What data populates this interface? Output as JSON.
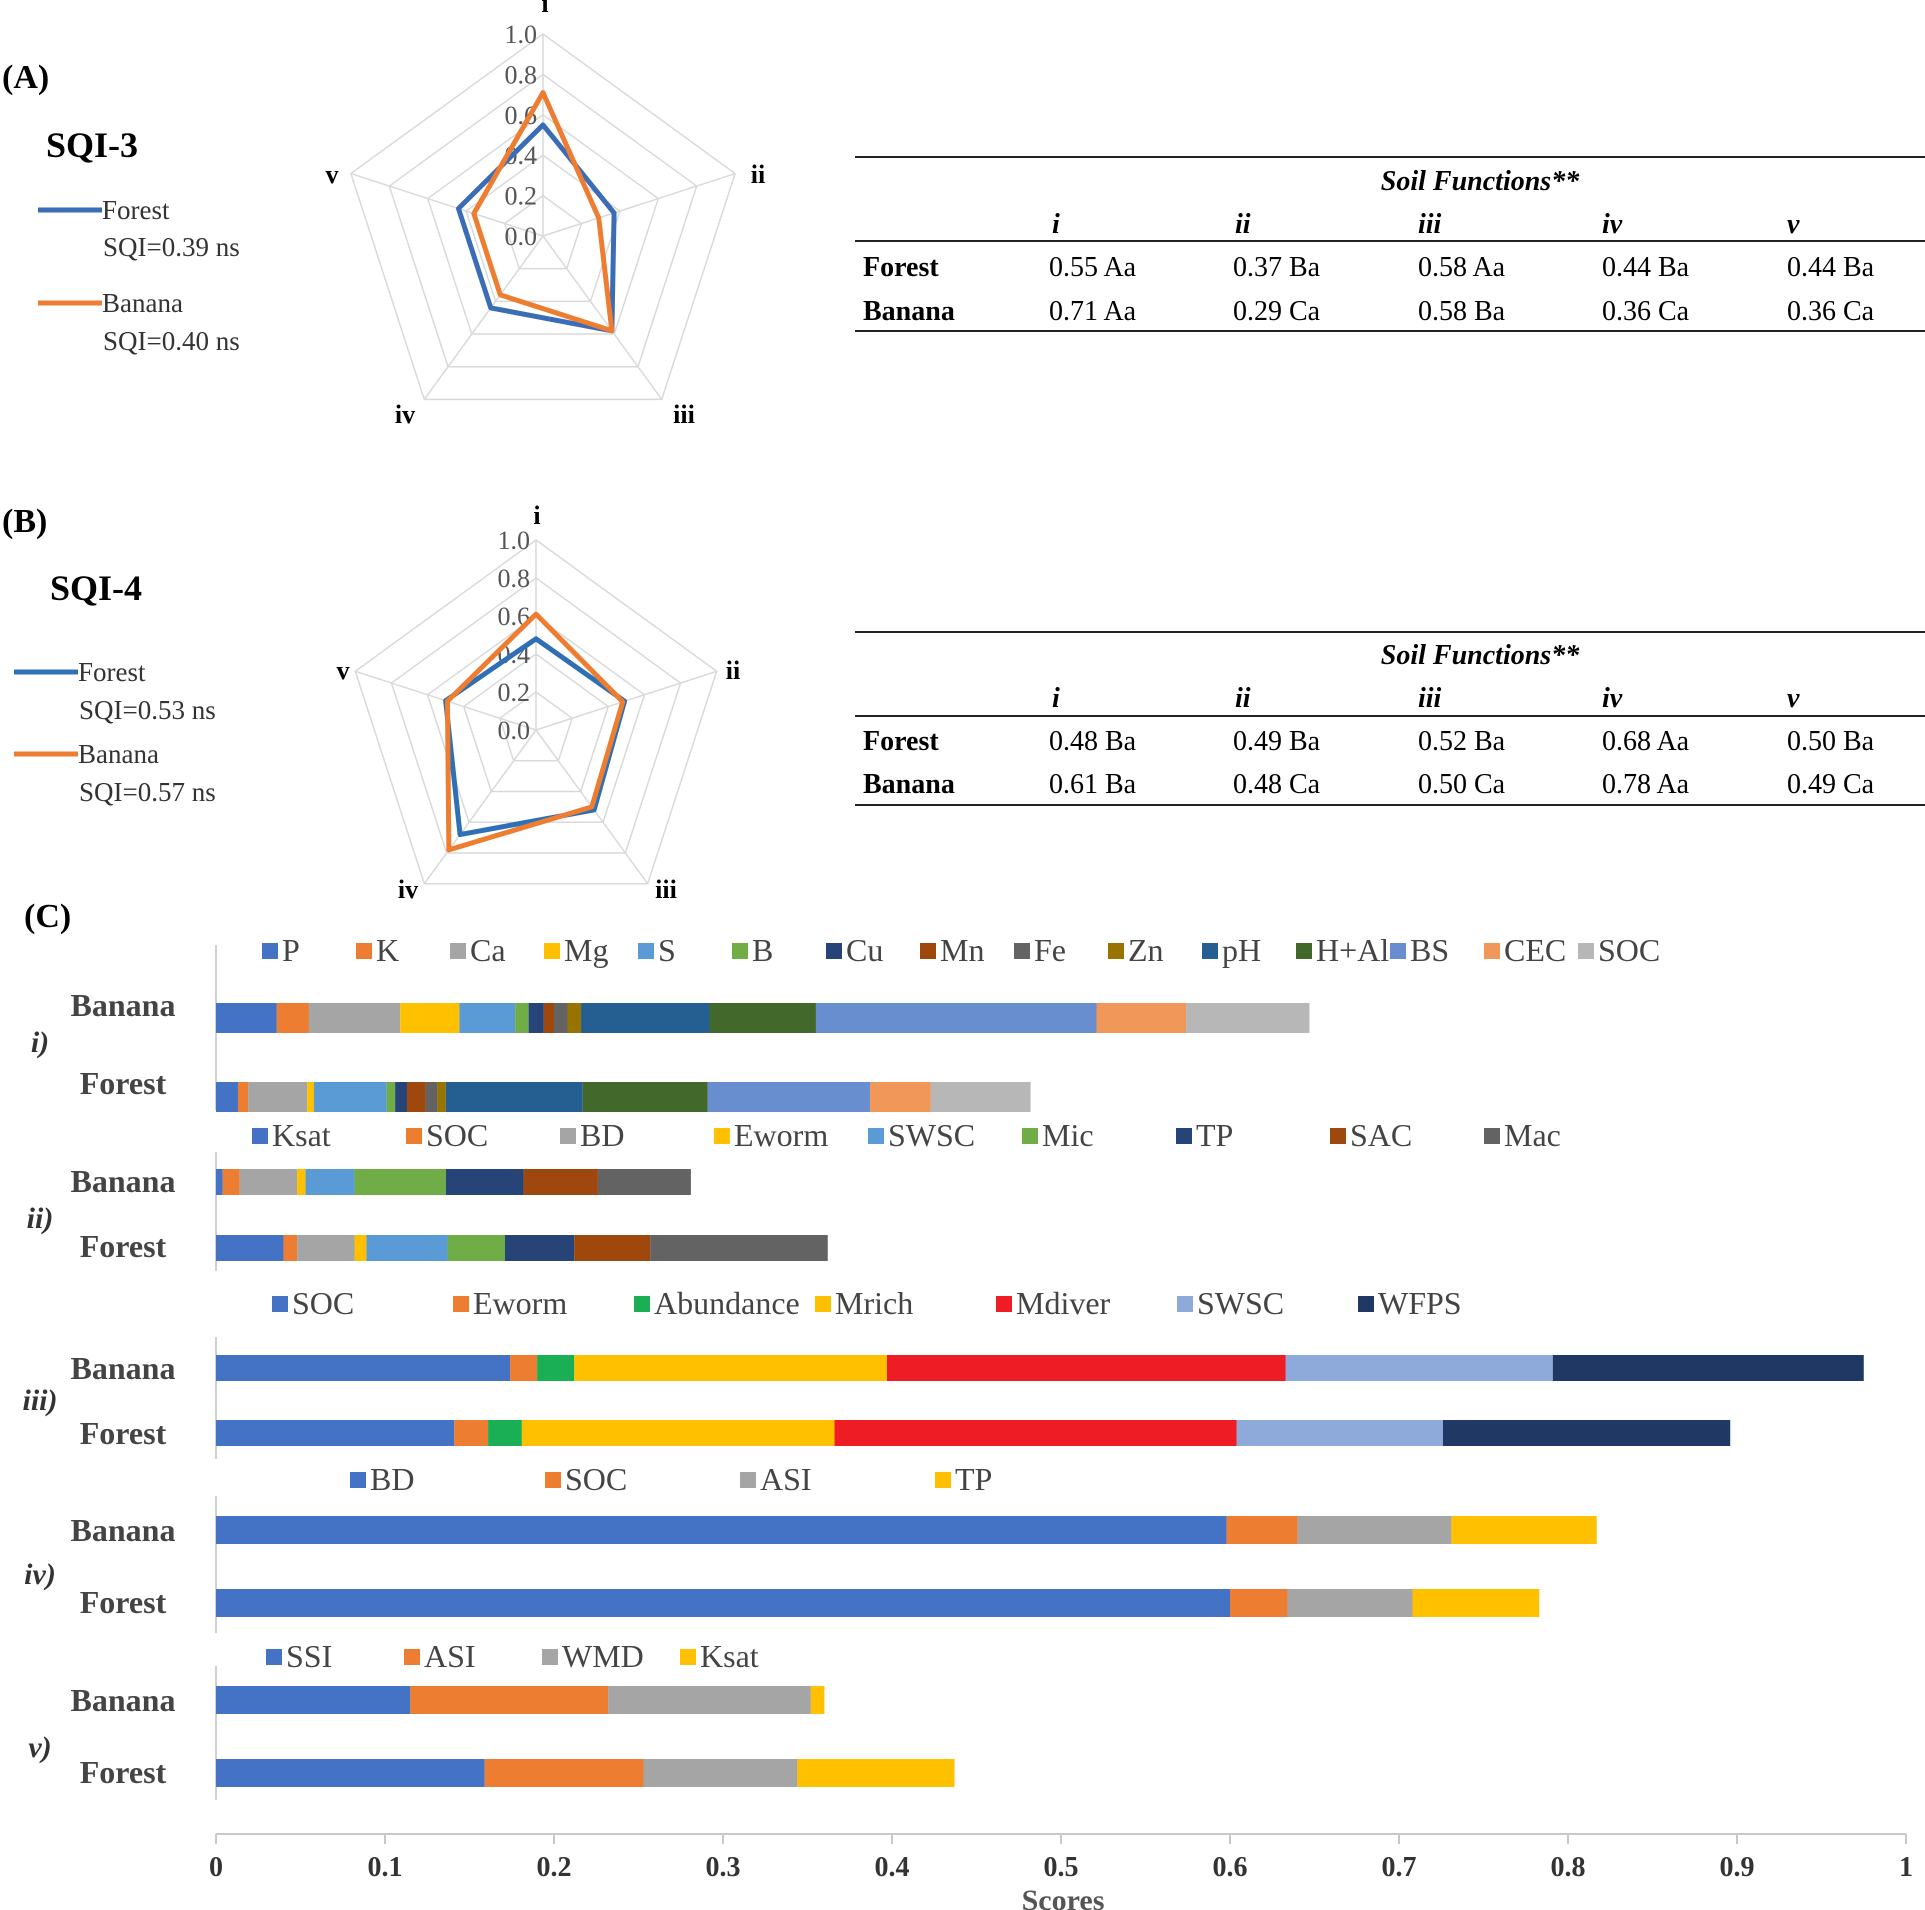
{
  "chart_data": [
    {
      "type": "radar",
      "panel": "(A)",
      "title": "SQI-3",
      "axes": [
        "i",
        "ii",
        "iii",
        "iv",
        "v"
      ],
      "ticks": [
        "1.0",
        "0.8",
        "0.6",
        "0.4",
        "0.2",
        "0.0"
      ],
      "rlim": [
        0,
        1
      ],
      "series": [
        {
          "name": "Forest",
          "sqi": "SQI=0.39 ns",
          "color": "#3a6db5",
          "values": [
            0.55,
            0.37,
            0.58,
            0.44,
            0.44
          ]
        },
        {
          "name": "Banana",
          "sqi": "SQI=0.40 ns",
          "color": "#ed7d31",
          "values": [
            0.71,
            0.29,
            0.58,
            0.36,
            0.36
          ]
        }
      ],
      "table": {
        "title": "Soil Functions**",
        "columns": [
          "i",
          "ii",
          "iii",
          "iv",
          "v"
        ],
        "rows": [
          {
            "label": "Forest",
            "cells": [
              "0.55 Aa",
              "0.37 Ba",
              "0.58 Aa",
              "0.44 Ba",
              "0.44 Ba"
            ]
          },
          {
            "label": "Banana",
            "cells": [
              "0.71 Aa",
              "0.29 Ca",
              "0.58 Ba",
              "0.36 Ca",
              "0.36 Ca"
            ]
          }
        ]
      }
    },
    {
      "type": "radar",
      "panel": "(B)",
      "title": "SQI-4",
      "axes": [
        "i",
        "ii",
        "iii",
        "iv",
        "v"
      ],
      "ticks": [
        "1.0",
        "0.8",
        "0.6",
        "0.4",
        "0.2",
        "0.0"
      ],
      "rlim": [
        0,
        1
      ],
      "series": [
        {
          "name": "Forest",
          "sqi": "SQI=0.53 ns",
          "color": "#2e6fb5",
          "values": [
            0.48,
            0.49,
            0.52,
            0.68,
            0.5
          ]
        },
        {
          "name": "Banana",
          "sqi": "SQI=0.57 ns",
          "color": "#ed7d31",
          "values": [
            0.61,
            0.48,
            0.5,
            0.78,
            0.49
          ]
        }
      ],
      "table": {
        "title": "Soil Functions**",
        "columns": [
          "i",
          "ii",
          "iii",
          "iv",
          "v"
        ],
        "rows": [
          {
            "label": "Forest",
            "cells": [
              "0.48 Ba",
              "0.49 Ba",
              "0.52 Ba",
              "0.68 Aa",
              "0.50 Ba"
            ]
          },
          {
            "label": "Banana",
            "cells": [
              "0.61 Ba",
              "0.48 Ca",
              "0.50 Ca",
              "0.78 Aa",
              "0.49 Ca"
            ]
          }
        ]
      }
    },
    {
      "type": "stacked-bar-horizontal",
      "panel": "(C)",
      "xlabel": "Scores",
      "xlim": [
        0,
        1
      ],
      "xticks": [
        "0",
        "0.1",
        "0.2",
        "0.3",
        "0.4",
        "0.5",
        "0.6",
        "0.7",
        "0.8",
        "0.9",
        "1"
      ],
      "groups": [
        {
          "label": "i)",
          "components": [
            {
              "name": "P",
              "color": "#4472c4"
            },
            {
              "name": "K",
              "color": "#ed7d31"
            },
            {
              "name": "Ca",
              "color": "#a5a5a5"
            },
            {
              "name": "Mg",
              "color": "#ffc000"
            },
            {
              "name": "S",
              "color": "#5b9bd5"
            },
            {
              "name": "B",
              "color": "#70ad47"
            },
            {
              "name": "Cu",
              "color": "#264478"
            },
            {
              "name": "Mn",
              "color": "#9e480e"
            },
            {
              "name": "Fe",
              "color": "#636363"
            },
            {
              "name": "Zn",
              "color": "#997300"
            },
            {
              "name": "pH",
              "color": "#255e91"
            },
            {
              "name": "H+Al",
              "color": "#43682b"
            },
            {
              "name": "BS",
              "color": "#698ed0"
            },
            {
              "name": "CEC",
              "color": "#f1975a"
            },
            {
              "name": "SOC",
              "color": "#b7b7b7"
            }
          ],
          "bars": [
            {
              "name": "Banana",
              "values": [
                0.036,
                0.019,
                0.054,
                0.035,
                0.033,
                0.008,
                0.009,
                0.006,
                0.008,
                0.008,
                0.076,
                0.063,
                0.166,
                0.053,
                0.073
              ]
            },
            {
              "name": "Forest",
              "values": [
                0.013,
                0.006,
                0.035,
                0.004,
                0.043,
                0.005,
                0.007,
                0.011,
                0.007,
                0.005,
                0.081,
                0.074,
                0.096,
                0.036,
                0.059
              ]
            }
          ]
        },
        {
          "label": "ii)",
          "components": [
            {
              "name": "Ksat",
              "color": "#4472c4"
            },
            {
              "name": "SOC",
              "color": "#ed7d31"
            },
            {
              "name": "BD",
              "color": "#a5a5a5"
            },
            {
              "name": "Eworm",
              "color": "#ffc000"
            },
            {
              "name": "SWSC",
              "color": "#5b9bd5"
            },
            {
              "name": "Mic",
              "color": "#70ad47"
            },
            {
              "name": "TP",
              "color": "#264478"
            },
            {
              "name": "SAC",
              "color": "#9e480e"
            },
            {
              "name": "Mac",
              "color": "#636363"
            }
          ],
          "bars": [
            {
              "name": "Banana",
              "values": [
                0.004,
                0.01,
                0.034,
                0.005,
                0.029,
                0.054,
                0.046,
                0.044,
                0.055
              ]
            },
            {
              "name": "Forest",
              "values": [
                0.04,
                0.008,
                0.034,
                0.007,
                0.048,
                0.034,
                0.041,
                0.045,
                0.105
              ]
            }
          ]
        },
        {
          "label": "iii)",
          "components": [
            {
              "name": "SOC",
              "color": "#4472c4"
            },
            {
              "name": "Eworm",
              "color": "#ed7d31"
            },
            {
              "name": "Abundance",
              "color": "#1aaf54"
            },
            {
              "name": "Mrich",
              "color": "#ffc000"
            },
            {
              "name": "Mdiver",
              "color": "#ee1c25"
            },
            {
              "name": "SWSC",
              "color": "#8eaadb"
            },
            {
              "name": "WFPS",
              "color": "#203864"
            }
          ],
          "bars": [
            {
              "name": "Banana",
              "values": [
                0.174,
                0.016,
                0.022,
                0.185,
                0.236,
                0.158,
                0.184
              ]
            },
            {
              "name": "Forest",
              "values": [
                0.141,
                0.02,
                0.02,
                0.185,
                0.238,
                0.122,
                0.17
              ]
            }
          ]
        },
        {
          "label": "iv)",
          "components": [
            {
              "name": "BD",
              "color": "#4472c4"
            },
            {
              "name": "SOC",
              "color": "#ed7d31"
            },
            {
              "name": "ASI",
              "color": "#a5a5a5"
            },
            {
              "name": "TP",
              "color": "#ffc000"
            }
          ],
          "bars": [
            {
              "name": "Banana",
              "values": [
                0.598,
                0.042,
                0.091,
                0.086
              ]
            },
            {
              "name": "Forest",
              "values": [
                0.6,
                0.034,
                0.074,
                0.075
              ]
            }
          ]
        },
        {
          "label": "v)",
          "components": [
            {
              "name": "SSI",
              "color": "#4472c4"
            },
            {
              "name": "ASI",
              "color": "#ed7d31"
            },
            {
              "name": "WMD",
              "color": "#a5a5a5"
            },
            {
              "name": "Ksat",
              "color": "#ffc000"
            }
          ],
          "bars": [
            {
              "name": "Banana",
              "values": [
                0.115,
                0.117,
                0.12,
                0.008
              ]
            },
            {
              "name": "Forest",
              "values": [
                0.159,
                0.094,
                0.091,
                0.093
              ]
            }
          ]
        }
      ]
    }
  ]
}
